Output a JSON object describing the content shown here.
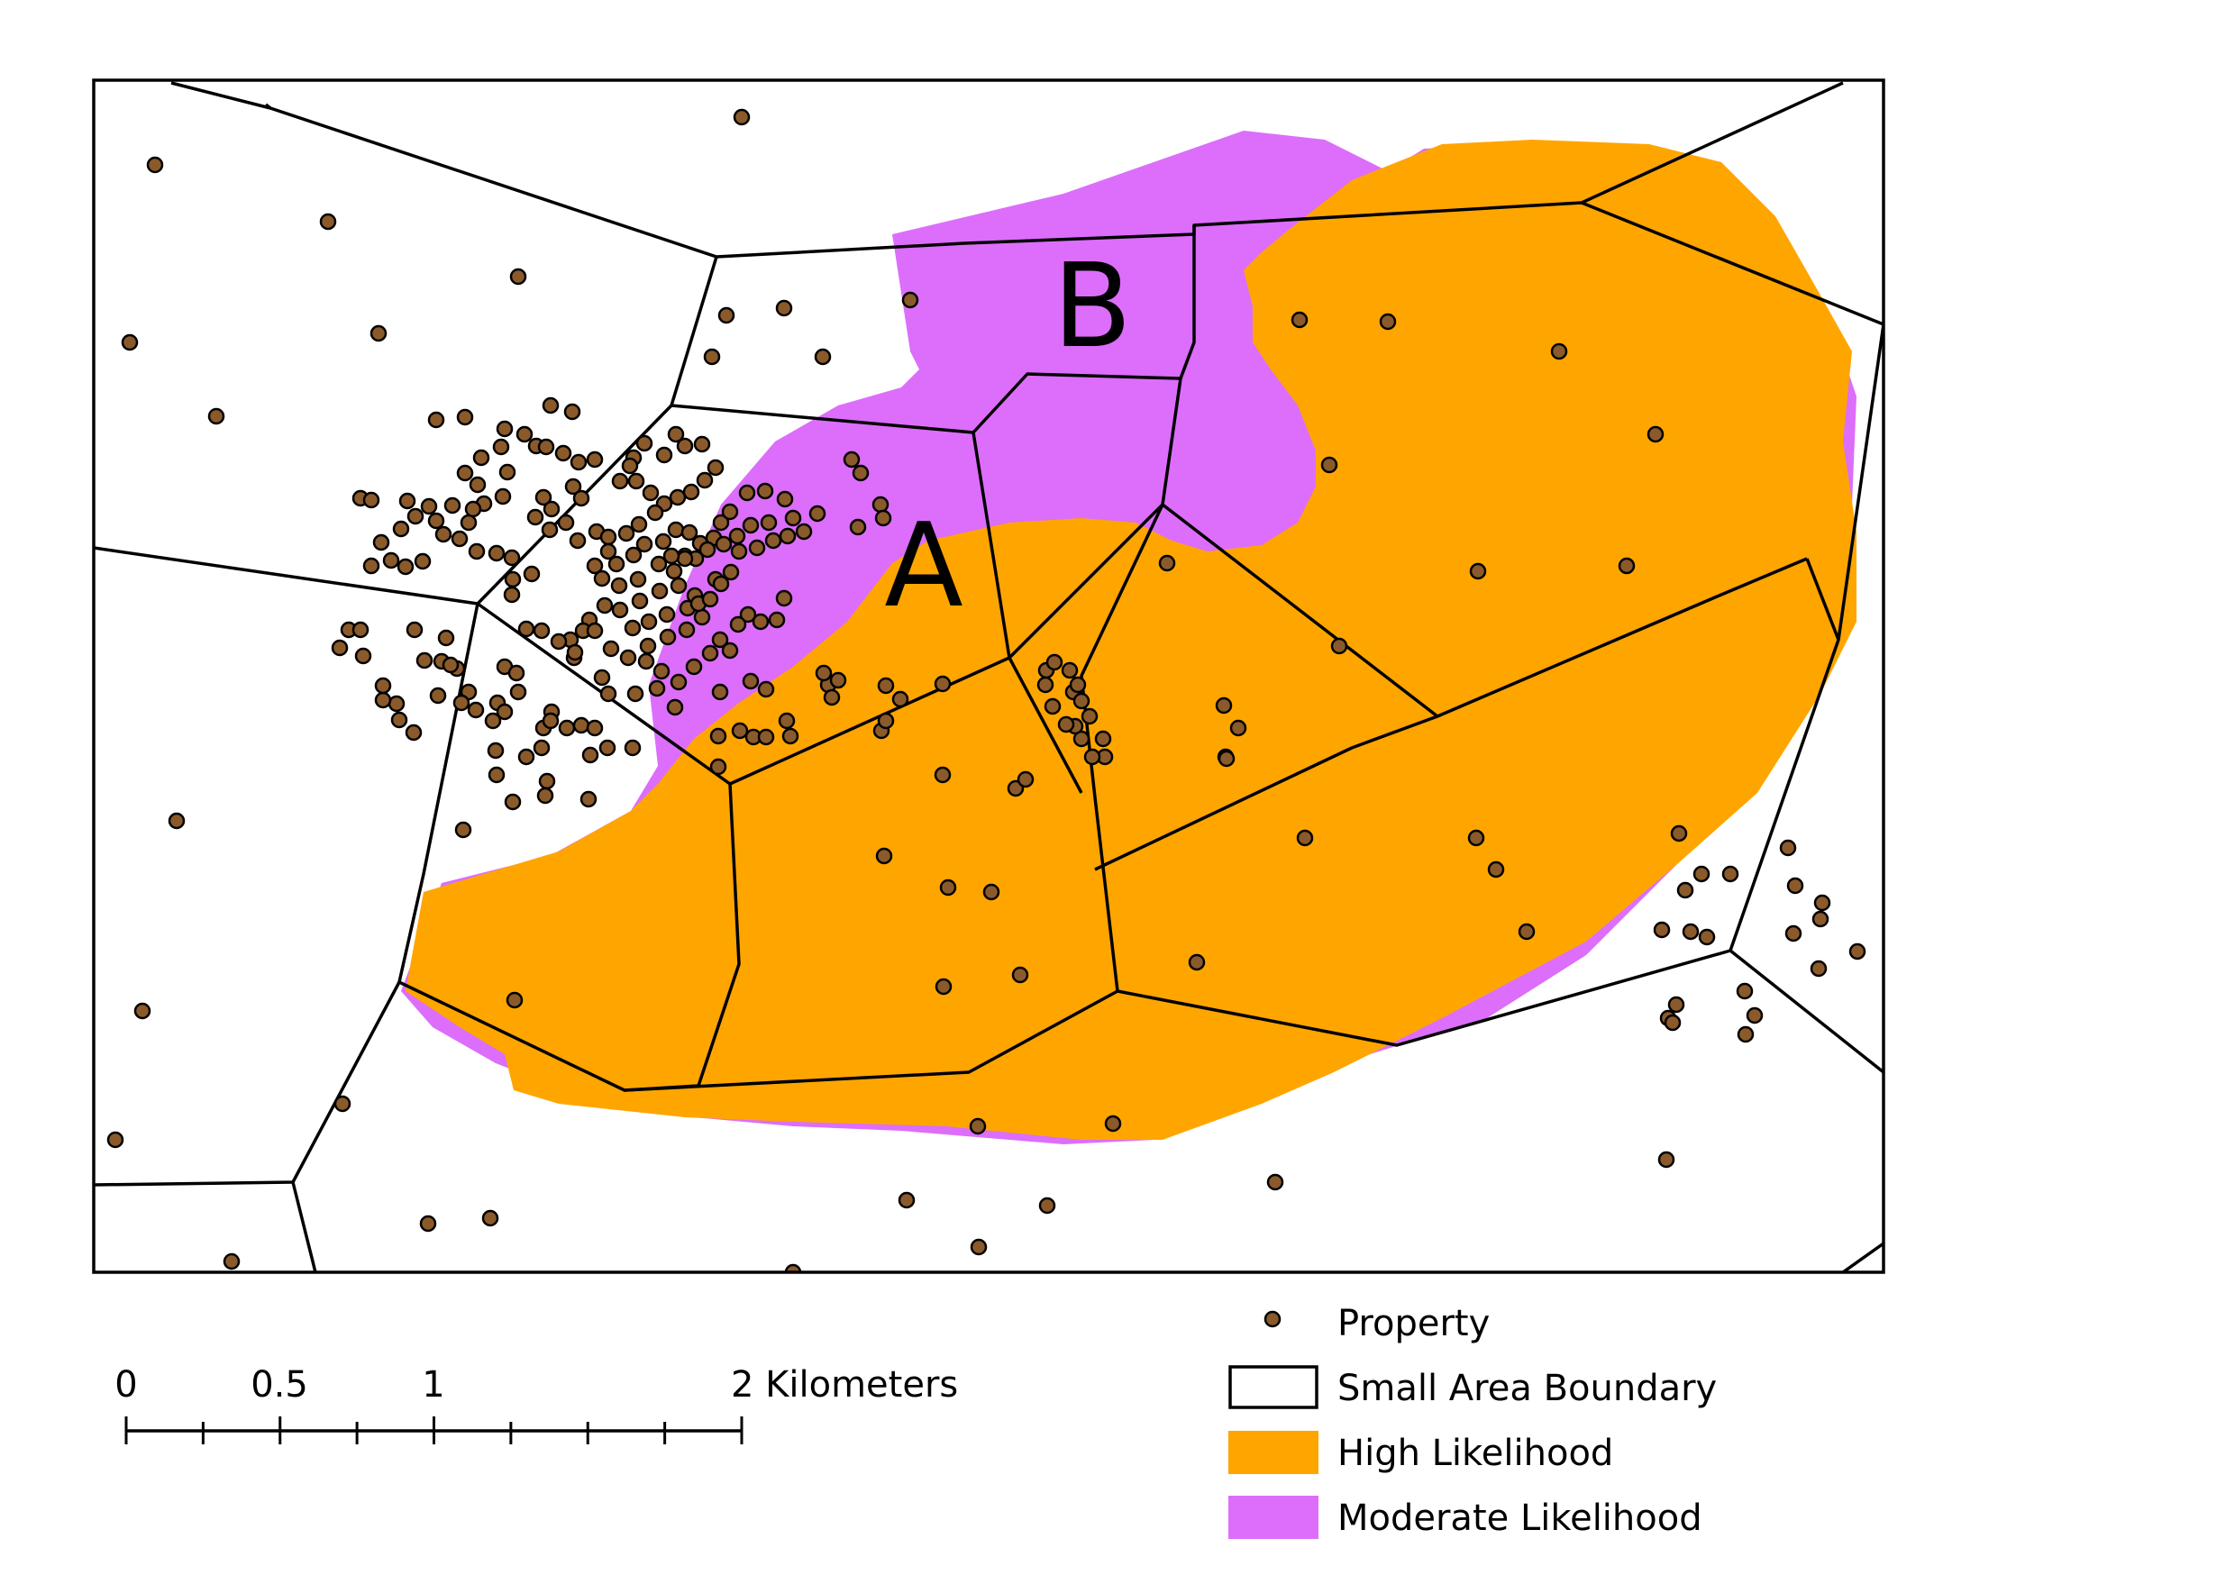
{
  "map": {
    "zones": [
      {
        "id": "A",
        "label": "A"
      },
      {
        "id": "B",
        "label": "B"
      }
    ]
  },
  "legend": {
    "items": [
      {
        "key": "property",
        "label": "Property",
        "color": "#8B5A2B"
      },
      {
        "key": "boundary",
        "label": "Small Area Boundary",
        "color": "#000000"
      },
      {
        "key": "high",
        "label": "High Likelihood",
        "color": "#FFA500"
      },
      {
        "key": "moderate",
        "label": "Moderate Likelihood",
        "color": "#DC6EFB"
      }
    ]
  },
  "scale_bar": {
    "labels": [
      "0",
      "0.5",
      "1",
      "2 Kilometers"
    ],
    "values_km": [
      0,
      0.5,
      1,
      2
    ]
  }
}
